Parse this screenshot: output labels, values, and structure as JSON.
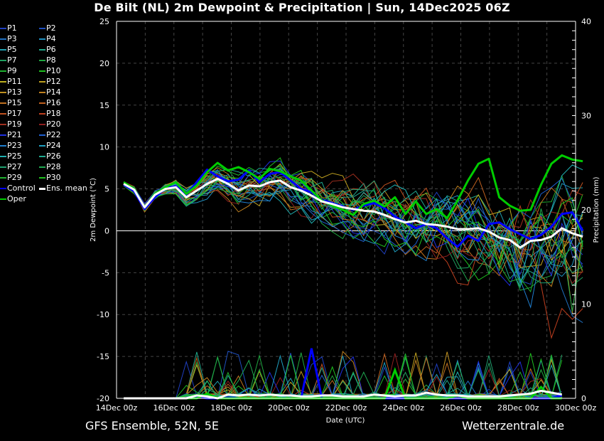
{
  "title": "De Bilt  (NL)  2m Dewpoint & Precipitation | Sun, 14Dec2025 06Z",
  "footer": {
    "left": "GFS Ensemble, 52N, 5E",
    "right": "Wetterzentrale.de"
  },
  "legend": [
    {
      "label": "P1",
      "color": "#1f3fbf"
    },
    {
      "label": "P2",
      "color": "#1f4fbf"
    },
    {
      "label": "P3",
      "color": "#1f6fbf"
    },
    {
      "label": "P4",
      "color": "#1f8fbf"
    },
    {
      "label": "P5",
      "color": "#1fa0b0"
    },
    {
      "label": "P6",
      "color": "#1fa88a"
    },
    {
      "label": "P7",
      "color": "#1fa060"
    },
    {
      "label": "P8",
      "color": "#1fa840"
    },
    {
      "label": "P9",
      "color": "#1fb030"
    },
    {
      "label": "P10",
      "color": "#1fbf1f"
    },
    {
      "label": "P11",
      "color": "#bfb01f"
    },
    {
      "label": "P12",
      "color": "#bfa01f"
    },
    {
      "label": "P13",
      "color": "#bf901f"
    },
    {
      "label": "P14",
      "color": "#bf801f"
    },
    {
      "label": "P15",
      "color": "#bf701f"
    },
    {
      "label": "P16",
      "color": "#bf601f"
    },
    {
      "label": "P17",
      "color": "#bf501f"
    },
    {
      "label": "P18",
      "color": "#bf3f1f"
    },
    {
      "label": "P19",
      "color": "#a02f1f"
    },
    {
      "label": "P20",
      "color": "#8f1f1f"
    },
    {
      "label": "P21",
      "color": "#1f2fdf"
    },
    {
      "label": "P22",
      "color": "#1f5fcf"
    },
    {
      "label": "P23",
      "color": "#1f7fcf"
    },
    {
      "label": "P24",
      "color": "#1f9fc0"
    },
    {
      "label": "P25",
      "color": "#1fafaf"
    },
    {
      "label": "P26",
      "color": "#1fa98f"
    },
    {
      "label": "P27",
      "color": "#1fa06f"
    },
    {
      "label": "P28",
      "color": "#1fa850"
    },
    {
      "label": "P29",
      "color": "#1fb02f"
    },
    {
      "label": "P30",
      "color": "#1fc01f"
    },
    {
      "label": "Control",
      "color": "#0000ff"
    },
    {
      "label": "Ens. mean",
      "color": "#ffffff"
    },
    {
      "label": "Oper",
      "color": "#00cc00"
    }
  ],
  "chart_data": {
    "type": "line",
    "title": "De Bilt  (NL)  2m Dewpoint & Precipitation | Sun, 14Dec2025 06Z",
    "xlabel": "Date (UTC)",
    "ylabel": "2m Dewpoint (°C)",
    "y2label": "Precipitation (mm)",
    "ylim": [
      -20,
      25
    ],
    "y2lim": [
      0,
      40
    ],
    "yticks": [
      "25",
      "20",
      "15",
      "10",
      "5",
      "0",
      "-5",
      "-10",
      "-15",
      "-20"
    ],
    "y2ticks": [
      "40",
      "30",
      "20",
      "10",
      "0"
    ],
    "xticks": [
      "14Dec 00z",
      "16Dec 00z",
      "18Dec 00z",
      "20Dec 00z",
      "22Dec 00z",
      "24Dec 00z",
      "26Dec 00z",
      "28Dec 00z",
      "30Dec 00z"
    ],
    "x_start": "14Dec 06z",
    "x_step_hours": 6,
    "grid": true,
    "legend_position": "left-outside",
    "dewpoint": {
      "Ens. mean": [
        5.6,
        4.9,
        2.8,
        4.3,
        5.0,
        5.2,
        4.0,
        4.8,
        5.6,
        6.2,
        5.6,
        4.8,
        5.4,
        5.3,
        5.8,
        6.0,
        5.2,
        4.8,
        4.2,
        3.5,
        3.2,
        2.8,
        2.6,
        2.4,
        2.3,
        1.9,
        1.4,
        1.0,
        1.2,
        0.8,
        0.7,
        0.5,
        0.2,
        0.2,
        0.3,
        -0.1,
        -0.8,
        -1.1,
        -2.0,
        -1.2,
        -1.1,
        -0.7,
        0.3,
        -0.3,
        -0.7
      ],
      "Control": [
        5.5,
        4.7,
        2.6,
        4.0,
        5.1,
        5.3,
        4.3,
        5.8,
        7.3,
        6.5,
        5.9,
        6.1,
        7.2,
        5.8,
        6.8,
        7.0,
        6.0,
        5.0,
        4.6,
        3.7,
        3.3,
        2.9,
        2.5,
        3.0,
        3.3,
        2.7,
        1.7,
        1.0,
        0.3,
        0.8,
        0.3,
        -0.9,
        -1.9,
        -0.6,
        -1.2,
        0.8,
        1.0,
        0.2,
        -0.4,
        -1.0,
        -0.5,
        0.5,
        2.0,
        2.2,
        0.0
      ],
      "Oper": [
        5.8,
        5.0,
        2.8,
        4.4,
        5.2,
        5.8,
        4.4,
        5.4,
        7.0,
        8.1,
        7.2,
        7.6,
        7.0,
        6.2,
        7.4,
        7.1,
        6.5,
        6.0,
        4.8,
        3.6,
        3.0,
        2.5,
        1.9,
        3.2,
        3.6,
        2.9,
        4.0,
        2.0,
        3.5,
        2.0,
        2.6,
        1.5,
        3.6,
        6.0,
        8.0,
        8.6,
        4.0,
        3.0,
        2.4,
        2.5,
        5.5,
        8.0,
        9.0,
        8.5,
        8.3
      ]
    },
    "perturbation_spread": {
      "start": [
        5.0,
        6.5
      ],
      "end": [
        -17.0,
        9.5
      ]
    },
    "precipitation": {
      "Ens. mean": [
        0,
        0,
        0,
        0,
        0,
        0,
        0,
        0.3,
        0.2,
        0,
        0.4,
        0.3,
        0.4,
        0.3,
        0.4,
        0.3,
        0.3,
        0.2,
        0.2,
        0.3,
        0.3,
        0.2,
        0.2,
        0.2,
        0.4,
        0.3,
        0.2,
        0.3,
        0.3,
        0.6,
        0.4,
        0.3,
        0.3,
        0.2,
        0.2,
        0.2,
        0.2,
        0.3,
        0.4,
        0.5,
        0.8,
        0.6,
        0.4
      ],
      "Control": [
        0,
        0,
        0,
        0,
        0,
        0,
        0,
        0.2,
        0,
        0,
        0.1,
        0,
        0,
        0,
        0,
        0,
        0,
        0,
        5.3,
        0,
        0,
        0,
        0,
        0,
        0,
        0,
        0,
        0,
        0,
        0,
        0,
        0,
        0,
        0,
        0,
        0,
        0,
        0,
        0,
        0,
        0,
        0,
        0.3
      ],
      "Oper": [
        0,
        0,
        0,
        0,
        0,
        0,
        0,
        0,
        0.5,
        0,
        0,
        0,
        0,
        0,
        0,
        0,
        0,
        0,
        0,
        0,
        0,
        0,
        0,
        0,
        0,
        0,
        3.0,
        0,
        0,
        0,
        0,
        0,
        0.3,
        0,
        0,
        0,
        0,
        0,
        0,
        0,
        1.2,
        0,
        0
      ]
    }
  }
}
